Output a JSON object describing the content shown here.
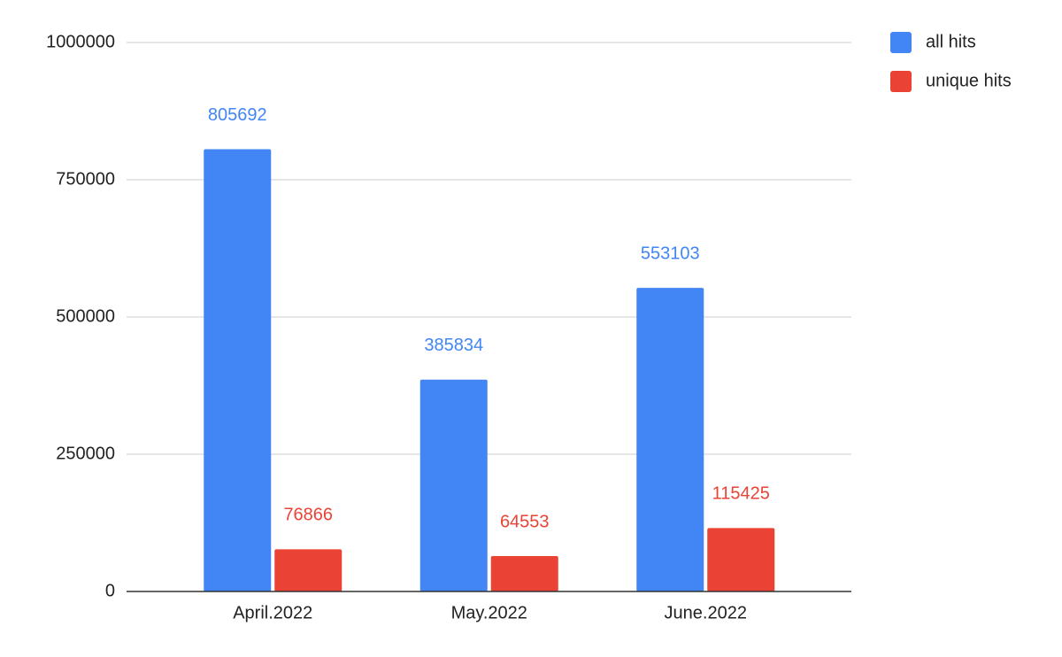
{
  "chart_data": {
    "type": "bar",
    "categories": [
      "April.2022",
      "May.2022",
      "June.2022"
    ],
    "series": [
      {
        "name": "all hits",
        "color": "#4285f4",
        "values": [
          805692,
          385834,
          553103
        ]
      },
      {
        "name": "unique hits",
        "color": "#ea4335",
        "values": [
          76866,
          64553,
          115425
        ]
      }
    ],
    "ylim": [
      0,
      1000000
    ],
    "yticks": [
      0,
      250000,
      500000,
      750000,
      1000000
    ],
    "grid": true,
    "legend": "right",
    "data_labels": true
  }
}
